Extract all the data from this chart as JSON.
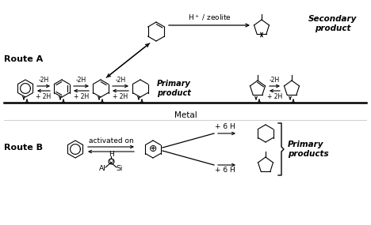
{
  "bg_color": "#ffffff",
  "line_color": "#000000",
  "text_color": "#000000",
  "route_a_label": "Route A",
  "route_b_label": "Route B",
  "metal_label": "Metal",
  "primary_product": "Primary\nproduct",
  "secondary_product": "Secondary\nproduct",
  "primary_products": "Primary\nproducts",
  "h_zeolite": "H$^+$ / zeolite",
  "activated_on": "activated on",
  "minus2h": "-2H",
  "plus2h": "+ 2H",
  "plus6h": "+ 6 H",
  "h_label": "H",
  "o_label": "O",
  "al_label": "Al",
  "si_label": "Si",
  "fig_width": 4.68,
  "fig_height": 2.85,
  "dpi": 100
}
